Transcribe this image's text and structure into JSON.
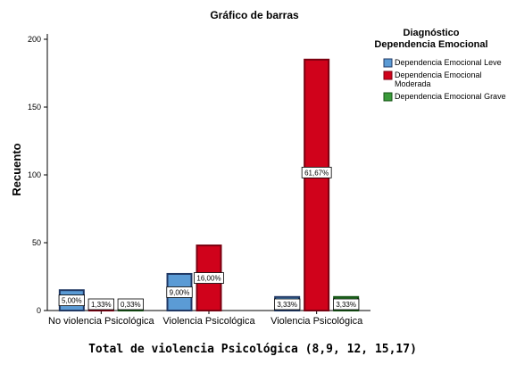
{
  "chart_data": {
    "type": "bar",
    "title": "Gráfico de barras",
    "xlabel": "Total de violencia Psicológica (8,9, 12, 15,17)",
    "ylabel": "Recuento",
    "ylim": [
      0,
      200
    ],
    "yticks": [
      0,
      50,
      100,
      150,
      200
    ],
    "grid": false,
    "legend_position": "right",
    "legend_title": [
      "Diagnóstico",
      "Dependencia Emocional"
    ],
    "categories": [
      "No violencia Psicológica",
      "Violencia Psicológica",
      "Violencia Psicológica"
    ],
    "series": [
      {
        "name": "Dependencia Emocional Leve",
        "name_lines": [
          "Dependencia Emocional Leve"
        ],
        "color": "#5b9bd5",
        "border": "#203864",
        "values": [
          15,
          27,
          10
        ],
        "labels": [
          "5,00%",
          "9,00%",
          "3,33%"
        ]
      },
      {
        "name": "Dependencia Emocional Moderada",
        "name_lines": [
          "Dependencia Emocional",
          "Moderada"
        ],
        "color": "#d0021b",
        "border": "#7a0010",
        "values": [
          4,
          48,
          185
        ],
        "labels": [
          "1,33%",
          "16,00%",
          "61,67%"
        ]
      },
      {
        "name": "Dependencia Emocional Grave",
        "name_lines": [
          "Dependencia Emocional Grave"
        ],
        "color": "#3a9a3a",
        "border": "#145214",
        "values": [
          1,
          0,
          10
        ],
        "labels": [
          "0,33%",
          "",
          "3,33%"
        ]
      }
    ]
  }
}
